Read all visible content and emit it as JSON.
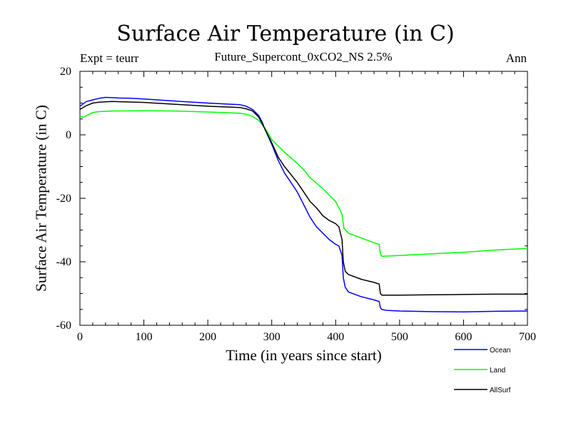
{
  "chart_data": {
    "type": "line",
    "title": "Surface Air Temperature (in C)",
    "subtitle": "Future_Supercont_0xCO2_NS 2.5%",
    "expt_label": "Expt = teurr",
    "season_label": "Ann",
    "xlabel": "Time (in years since start)",
    "ylabel": "Surface Air Temperature (in C)",
    "xlim": [
      0,
      700
    ],
    "ylim": [
      -60,
      20
    ],
    "xticks": [
      0,
      100,
      200,
      300,
      400,
      500,
      600,
      700
    ],
    "yticks": [
      -60,
      -40,
      -20,
      0,
      20
    ],
    "grid": false,
    "legend_position": "bottom-right",
    "series": [
      {
        "name": "Ocean",
        "color": "#0000ff",
        "x": [
          0,
          10,
          20,
          30,
          40,
          50,
          60,
          80,
          100,
          150,
          200,
          250,
          260,
          270,
          280,
          285,
          290,
          300,
          310,
          320,
          330,
          340,
          350,
          360,
          370,
          380,
          390,
          400,
          405,
          410,
          412,
          415,
          420,
          440,
          460,
          468,
          470,
          472,
          480,
          500,
          550,
          600,
          650,
          700
        ],
        "values": [
          9,
          10.5,
          11,
          11.5,
          11.8,
          11.7,
          11.6,
          11.5,
          11.3,
          10.6,
          10.0,
          9.5,
          9.0,
          8.0,
          6.0,
          4.0,
          1.5,
          -3.0,
          -8.0,
          -12.0,
          -15.0,
          -18.0,
          -22.0,
          -26.0,
          -29.0,
          -31.0,
          -33.0,
          -34.5,
          -35.0,
          -38.0,
          -45.0,
          -48.0,
          -49.5,
          -51.0,
          -52.0,
          -52.5,
          -54.5,
          -55.0,
          -55.3,
          -55.5,
          -55.7,
          -55.8,
          -55.6,
          -55.5
        ]
      },
      {
        "name": "Land",
        "color": "#00ff00",
        "x": [
          0,
          5,
          10,
          20,
          30,
          50,
          100,
          150,
          200,
          250,
          260,
          270,
          280,
          290,
          300,
          320,
          340,
          350,
          360,
          380,
          400,
          405,
          410,
          413,
          420,
          440,
          460,
          468,
          470,
          472,
          500,
          550,
          600,
          650,
          700
        ],
        "values": [
          6,
          5.5,
          6.0,
          7.0,
          7.3,
          7.5,
          7.6,
          7.5,
          7.2,
          6.8,
          6.5,
          5.8,
          4.5,
          2.0,
          -1.5,
          -5.5,
          -9.0,
          -11.0,
          -13.5,
          -17.0,
          -21.0,
          -23.0,
          -25.0,
          -29.5,
          -31.0,
          -32.5,
          -34.0,
          -34.5,
          -37.5,
          -38.3,
          -38.0,
          -37.5,
          -37.0,
          -36.3,
          -35.8
        ]
      },
      {
        "name": "AllSurf",
        "color": "#000000",
        "x": [
          0,
          10,
          20,
          30,
          50,
          100,
          150,
          200,
          250,
          260,
          270,
          280,
          290,
          300,
          310,
          320,
          330,
          340,
          350,
          360,
          370,
          380,
          390,
          400,
          405,
          410,
          412,
          415,
          420,
          440,
          460,
          468,
          470,
          472,
          500,
          550,
          600,
          650,
          700
        ],
        "values": [
          8,
          9.2,
          10.0,
          10.3,
          10.5,
          10.2,
          9.6,
          9.0,
          8.6,
          8.2,
          7.5,
          5.5,
          1.5,
          -2.5,
          -7.0,
          -10.0,
          -12.5,
          -15.0,
          -18.0,
          -21.0,
          -23.0,
          -25.5,
          -27.0,
          -28.0,
          -29.0,
          -33.0,
          -40.0,
          -43.0,
          -44.0,
          -45.5,
          -46.5,
          -47.0,
          -50.0,
          -50.5,
          -50.5,
          -50.4,
          -50.3,
          -50.2,
          -50.2
        ]
      }
    ]
  }
}
